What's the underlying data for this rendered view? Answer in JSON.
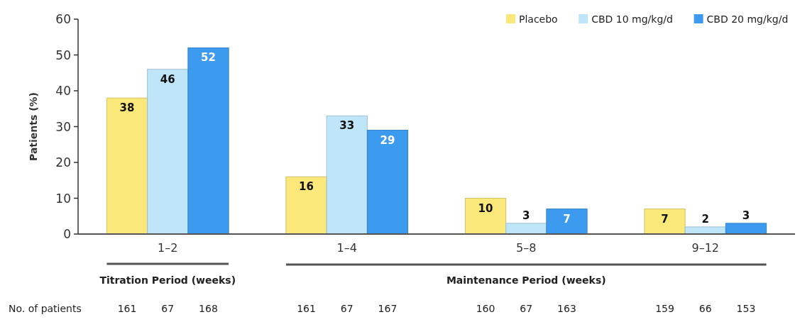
{
  "chart_data": {
    "type": "bar",
    "ylabel": "Patients (%)",
    "categories": [
      "1–2",
      "1–4",
      "5–8",
      "9–12"
    ],
    "series": [
      {
        "name": "Placebo",
        "color": "#fbe87a",
        "values": [
          38,
          16,
          10,
          7
        ]
      },
      {
        "name": "CBD 10 mg/kg/d",
        "color": "#bfe5f8",
        "values": [
          46,
          33,
          3,
          2
        ]
      },
      {
        "name": "CBD 20 mg/kg/d",
        "color": "#3d9bef",
        "values": [
          52,
          29,
          7,
          3
        ]
      }
    ],
    "ylim": [
      0,
      60
    ],
    "yticks": [
      0,
      10,
      20,
      30,
      40,
      50,
      60
    ],
    "grid": false,
    "legend": "top right",
    "data_labels": true,
    "annotations": [
      "Titration Period (weeks)",
      "Maintenance Period (weeks)",
      "No. of patients",
      "161",
      "67",
      "168",
      "161",
      "67",
      "167",
      "160",
      "67",
      "163",
      "159",
      "66",
      "153"
    ]
  }
}
